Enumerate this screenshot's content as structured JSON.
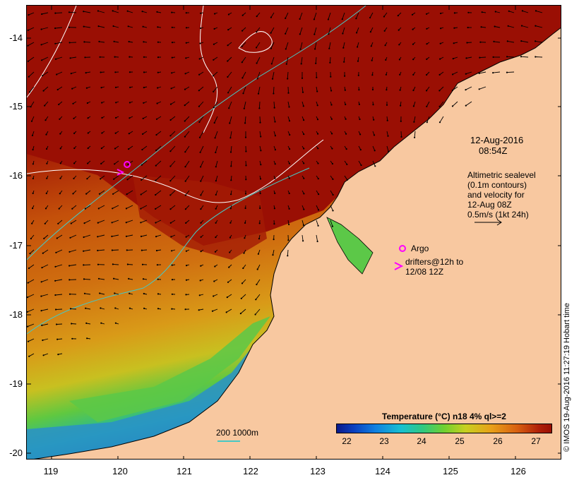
{
  "map": {
    "lat_ticks": [
      "-14",
      "-15",
      "-16",
      "-17",
      "-18",
      "-19",
      "-20"
    ],
    "lon_ticks": [
      "119",
      "120",
      "121",
      "122",
      "123",
      "124",
      "125",
      "126"
    ],
    "lat_range": [
      -20.1,
      -13.6
    ],
    "lon_range": [
      118.65,
      126.65
    ]
  },
  "annotations": {
    "datetime_line1": "12-Aug-2016",
    "datetime_line2": "08:54Z",
    "altimetry_lines": [
      "Altimetric sealevel",
      "(0.1m contours)",
      "and velocity for",
      "12-Aug 08Z",
      "0.5m/s (1kt 24h)"
    ],
    "argo_label": "Argo",
    "drifters_line1": "drifters@12h to",
    "drifters_line2": "12/08 12Z"
  },
  "colorbar": {
    "title": "Temperature (°C) n18 4% ql>=2",
    "ticks": [
      "22",
      "23",
      "24",
      "25",
      "26",
      "27"
    ],
    "range": [
      21.7,
      27.4
    ]
  },
  "scale_bar": {
    "label": "200  1000m"
  },
  "credit": "© IMOS 19-Aug-2016 11:27:19 Hobart time",
  "colors": {
    "land": "#f8c8a0",
    "warm": "#9a0f04",
    "contour_sealevel": "#ffffff",
    "contour_isobath": "#47c8c4",
    "marker": "#ff00ff"
  }
}
